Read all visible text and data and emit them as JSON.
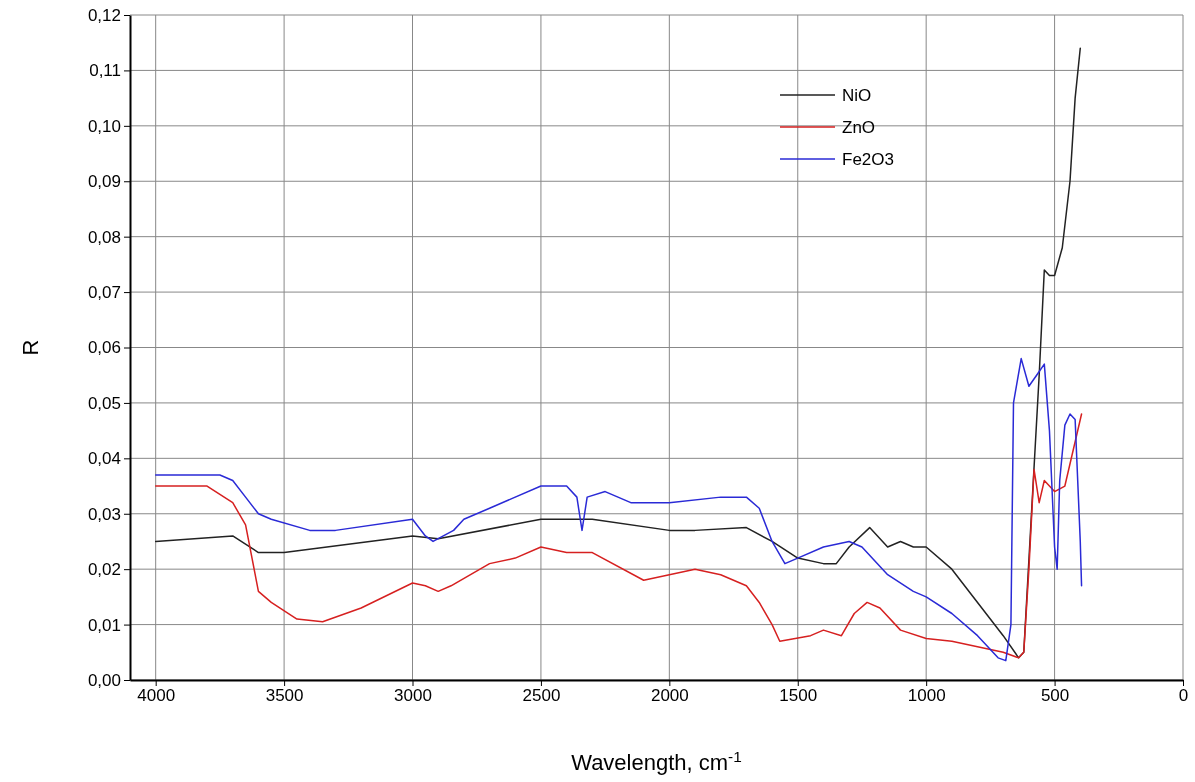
{
  "chart_data": {
    "type": "line",
    "xlabel": "Wavelength, cm$^{-1}$",
    "ylabel": "R",
    "xlim": [
      4100,
      0
    ],
    "xticks": [
      4000,
      3500,
      3000,
      2500,
      2000,
      1500,
      1000,
      500,
      0
    ],
    "ylim": [
      0,
      0.12
    ],
    "yticks": [
      {
        "value": 0,
        "label": "0,00"
      },
      {
        "value": 0.01,
        "label": "0,01"
      },
      {
        "value": 0.02,
        "label": "0,02"
      },
      {
        "value": 0.03,
        "label": "0,03"
      },
      {
        "value": 0.04,
        "label": "0,04"
      },
      {
        "value": 0.05,
        "label": "0,05"
      },
      {
        "value": 0.06,
        "label": "0,06"
      },
      {
        "value": 0.07,
        "label": "0,07"
      },
      {
        "value": 0.08,
        "label": "0,08"
      },
      {
        "value": 0.09,
        "label": "0,09"
      },
      {
        "value": 0.1,
        "label": "0,10"
      },
      {
        "value": 0.11,
        "label": "0,11"
      },
      {
        "value": 0.12,
        "label": "0,12"
      }
    ],
    "grid": true,
    "legend": "top right",
    "line_style": "solid",
    "series": [
      {
        "name": "NiO",
        "color": "#222222",
        "x": [
          4000,
          3700,
          3600,
          3500,
          3000,
          2900,
          2500,
          2300,
          2000,
          1900,
          1700,
          1600,
          1500,
          1400,
          1350,
          1300,
          1220,
          1150,
          1100,
          1050,
          1000,
          900,
          800,
          700,
          640,
          620,
          590,
          560,
          540,
          520,
          500,
          470,
          440,
          420,
          400
        ],
        "values": [
          0.025,
          0.026,
          0.023,
          0.023,
          0.026,
          0.0255,
          0.029,
          0.029,
          0.027,
          0.027,
          0.0275,
          0.025,
          0.022,
          0.021,
          0.021,
          0.024,
          0.0275,
          0.024,
          0.025,
          0.024,
          0.024,
          0.02,
          0.014,
          0.008,
          0.004,
          0.005,
          0.03,
          0.055,
          0.074,
          0.073,
          0.073,
          0.078,
          0.09,
          0.105,
          0.114
        ]
      },
      {
        "name": "ZnO",
        "color": "#d62020",
        "x": [
          4000,
          3800,
          3700,
          3650,
          3600,
          3550,
          3450,
          3350,
          3200,
          3000,
          2950,
          2900,
          2850,
          2700,
          2600,
          2500,
          2400,
          2300,
          2100,
          2000,
          1900,
          1800,
          1700,
          1650,
          1600,
          1570,
          1450,
          1400,
          1330,
          1280,
          1230,
          1180,
          1100,
          1000,
          900,
          800,
          700,
          640,
          620,
          600,
          580,
          560,
          540,
          500,
          460,
          420,
          395
        ],
        "values": [
          0.035,
          0.035,
          0.032,
          0.028,
          0.016,
          0.014,
          0.011,
          0.0105,
          0.013,
          0.0175,
          0.017,
          0.016,
          0.017,
          0.021,
          0.022,
          0.024,
          0.023,
          0.023,
          0.018,
          0.019,
          0.02,
          0.019,
          0.017,
          0.014,
          0.01,
          0.007,
          0.008,
          0.009,
          0.008,
          0.012,
          0.014,
          0.013,
          0.009,
          0.0075,
          0.007,
          0.006,
          0.005,
          0.004,
          0.005,
          0.02,
          0.038,
          0.032,
          0.036,
          0.034,
          0.035,
          0.043,
          0.048
        ]
      },
      {
        "name": "Fe2O3",
        "color": "#2a2ad6",
        "x": [
          4000,
          3750,
          3700,
          3650,
          3600,
          3550,
          3400,
          3300,
          3000,
          2950,
          2920,
          2880,
          2840,
          2800,
          2700,
          2500,
          2400,
          2360,
          2340,
          2320,
          2250,
          2150,
          2000,
          1800,
          1700,
          1650,
          1600,
          1550,
          1500,
          1400,
          1300,
          1250,
          1150,
          1050,
          1000,
          900,
          800,
          720,
          690,
          670,
          660,
          630,
          600,
          570,
          540,
          520,
          500,
          490,
          480,
          460,
          440,
          420,
          400,
          395
        ],
        "values": [
          0.037,
          0.037,
          0.036,
          0.033,
          0.03,
          0.029,
          0.027,
          0.027,
          0.029,
          0.026,
          0.025,
          0.026,
          0.027,
          0.029,
          0.031,
          0.035,
          0.035,
          0.033,
          0.027,
          0.033,
          0.034,
          0.032,
          0.032,
          0.033,
          0.033,
          0.031,
          0.025,
          0.021,
          0.022,
          0.024,
          0.025,
          0.024,
          0.019,
          0.016,
          0.015,
          0.012,
          0.008,
          0.004,
          0.0035,
          0.01,
          0.05,
          0.058,
          0.053,
          0.055,
          0.057,
          0.045,
          0.024,
          0.02,
          0.036,
          0.046,
          0.048,
          0.047,
          0.025,
          0.017
        ]
      }
    ]
  }
}
